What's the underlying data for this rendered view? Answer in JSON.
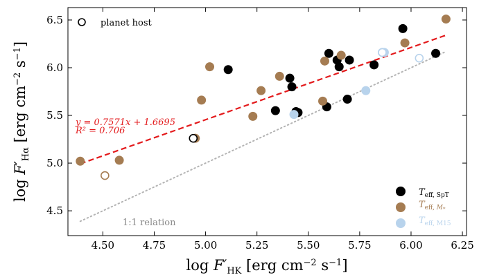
{
  "chart_data": {
    "type": "scatter",
    "xlabel": "log F′HK [erg cm⁻² s⁻¹]",
    "ylabel": "log F′Hα [erg cm⁻² s⁻¹]",
    "xlim": [
      4.33,
      6.27
    ],
    "ylim": [
      4.24,
      6.63
    ],
    "xticks": [
      "4.50",
      "4.75",
      "5.00",
      "5.25",
      "5.50",
      "5.75",
      "6.00",
      "6.25"
    ],
    "yticks": [
      "4.5",
      "5.0",
      "5.5",
      "6.0",
      "6.5"
    ],
    "colors": {
      "spt": "#000000",
      "m": "#a57c52",
      "m15": "#b8d3ec",
      "fit": "#e31a1c",
      "one_to_one": "#b3b3b3"
    },
    "series": [
      {
        "name": "T_eff,SpT",
        "color": "#000000",
        "points": [
          {
            "x": 5.11,
            "y": 5.98
          },
          {
            "x": 5.41,
            "y": 5.89
          },
          {
            "x": 5.42,
            "y": 5.8
          },
          {
            "x": 5.34,
            "y": 5.55
          },
          {
            "x": 5.44,
            "y": 5.54
          },
          {
            "x": 5.45,
            "y": 5.53
          },
          {
            "x": 5.59,
            "y": 5.59
          },
          {
            "x": 5.6,
            "y": 6.15
          },
          {
            "x": 5.64,
            "y": 6.08
          },
          {
            "x": 5.65,
            "y": 6.01
          },
          {
            "x": 5.7,
            "y": 6.08
          },
          {
            "x": 5.69,
            "y": 5.67
          },
          {
            "x": 5.82,
            "y": 6.03
          },
          {
            "x": 5.96,
            "y": 6.41
          },
          {
            "x": 6.12,
            "y": 6.15
          }
        ]
      },
      {
        "name": "T_eff,M*",
        "color": "#a57c52",
        "points": [
          {
            "x": 4.39,
            "y": 5.02
          },
          {
            "x": 4.58,
            "y": 5.03
          },
          {
            "x": 4.95,
            "y": 5.26
          },
          {
            "x": 4.98,
            "y": 5.66
          },
          {
            "x": 5.02,
            "y": 6.01
          },
          {
            "x": 5.23,
            "y": 5.49
          },
          {
            "x": 5.27,
            "y": 5.76
          },
          {
            "x": 5.36,
            "y": 5.91
          },
          {
            "x": 5.57,
            "y": 5.65
          },
          {
            "x": 5.58,
            "y": 6.07
          },
          {
            "x": 5.66,
            "y": 6.13
          },
          {
            "x": 5.97,
            "y": 6.26
          },
          {
            "x": 6.17,
            "y": 6.51
          }
        ]
      },
      {
        "name": "T_eff,M15",
        "color": "#b8d3ec",
        "points": [
          {
            "x": 5.43,
            "y": 5.51
          },
          {
            "x": 5.78,
            "y": 5.76
          },
          {
            "x": 5.86,
            "y": 6.16
          },
          {
            "x": 5.87,
            "y": 6.16
          }
        ]
      }
    ],
    "planet_hosts": [
      {
        "x": 4.51,
        "y": 4.87,
        "color": "#a57c52"
      },
      {
        "x": 4.94,
        "y": 5.26,
        "color": "#000000"
      },
      {
        "x": 5.86,
        "y": 6.16,
        "color": "#b8d3ec"
      },
      {
        "x": 6.04,
        "y": 6.1,
        "color": "#b8d3ec"
      }
    ],
    "fit": {
      "slope": 0.7571,
      "intercept": 1.6695,
      "x_range": [
        4.39,
        6.17
      ],
      "equation": "y = 0.7571x + 1.6695",
      "r2_text": "R² = 0.706"
    },
    "one_to_one": {
      "x_range": [
        4.39,
        6.17
      ],
      "label": "1:1 relation"
    },
    "legend": {
      "planet_host": "planet host",
      "items": [
        {
          "key": "spt",
          "label": "T_eff,SpT"
        },
        {
          "key": "m",
          "label": "T_eff,M*"
        },
        {
          "key": "m15",
          "label": "T_eff,M15"
        }
      ]
    },
    "grid": false
  }
}
